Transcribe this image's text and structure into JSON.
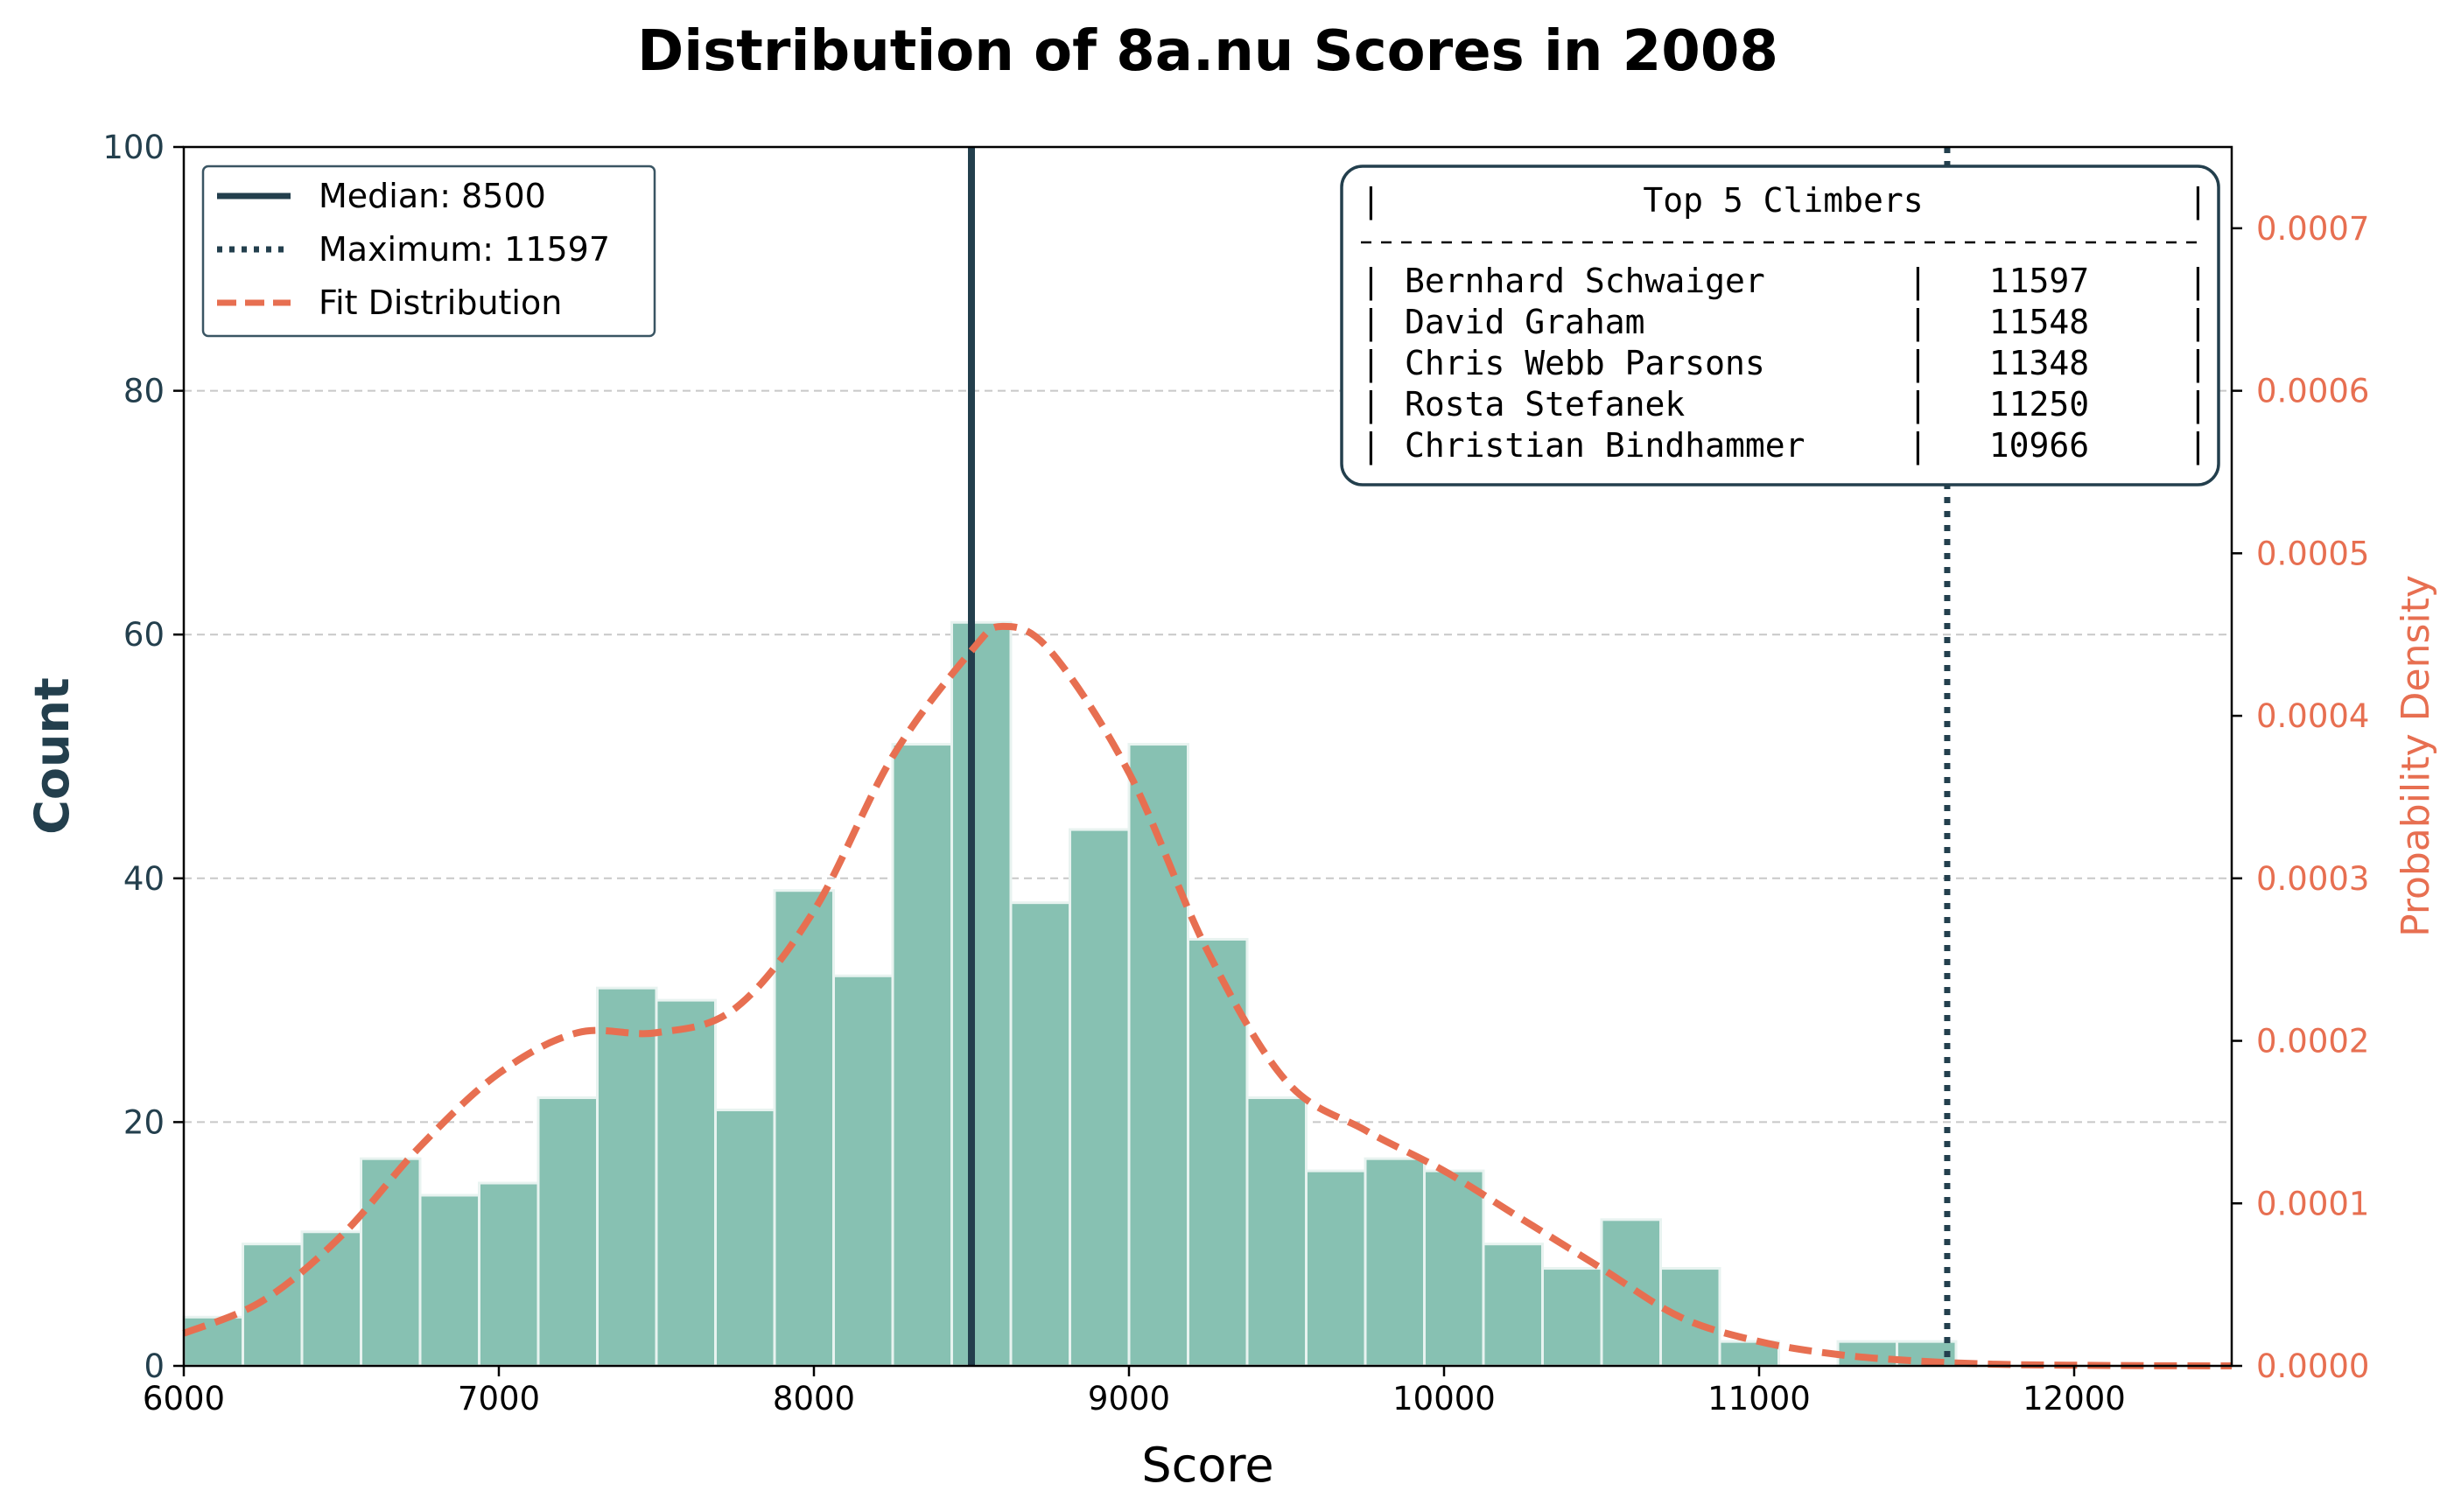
{
  "chart_data": {
    "type": "bar",
    "title": "Distribution of 8a.nu Scores in 2008",
    "xlabel": "Score",
    "ylabel": "Count",
    "y2label": "Probability Density",
    "xlim": [
      6000,
      12500
    ],
    "ylim": [
      0,
      100
    ],
    "y2lim": [
      0,
      0.00075
    ],
    "x_ticks": [
      "6000",
      "7000",
      "8000",
      "9000",
      "10000",
      "11000",
      "12000"
    ],
    "y_ticks": [
      "0",
      "20",
      "40",
      "60",
      "80",
      "100"
    ],
    "y2_ticks": [
      "0.0000",
      "0.0001",
      "0.0002",
      "0.0003",
      "0.0004",
      "0.0005",
      "0.0006",
      "0.0007"
    ],
    "grid": "horizontal dashed",
    "legend_placement": "upper-left",
    "colors": {
      "bars": "#87c1b2",
      "bar_edge": "#e8f3f0",
      "lines": "#233f4d",
      "fit": "#e76f51",
      "grid": "#c8c8c8"
    },
    "bins": {
      "start": 6000,
      "width": 187.5,
      "counts": [
        4,
        10,
        11,
        17,
        14,
        15,
        22,
        31,
        30,
        21,
        39,
        32,
        51,
        61,
        38,
        44,
        51,
        35,
        22,
        16,
        17,
        16,
        10,
        8,
        12,
        8,
        2,
        0,
        2,
        2
      ]
    },
    "median": 8500,
    "maximum": 11597,
    "fit_distribution": {
      "x": [
        6000,
        6250,
        6500,
        6750,
        7000,
        7250,
        7500,
        7750,
        8000,
        8250,
        8500,
        8600,
        8750,
        9000,
        9250,
        9500,
        9750,
        10000,
        10250,
        10500,
        10750,
        11000,
        11250,
        11500,
        11750,
        12000,
        12250,
        12500
      ],
      "y": [
        2e-05,
        4e-05,
        8e-05,
        0.000135,
        0.00018,
        0.000205,
        0.000205,
        0.00022,
        0.00028,
        0.000375,
        0.00044,
        0.000455,
        0.00044,
        0.000365,
        0.000255,
        0.000175,
        0.000145,
        0.00012,
        9e-05,
        6e-05,
        3e-05,
        1.5e-05,
        7e-06,
        3e-06,
        1e-06,
        4e-07,
        1e-07,
        0.0
      ]
    },
    "legend": [
      {
        "label": "Median: 8500",
        "style": "solid"
      },
      {
        "label": "Maximum: 11597",
        "style": "dotted"
      },
      {
        "label": "Fit Distribution",
        "style": "dashed"
      }
    ],
    "annotation_table": {
      "title": "Top 5 Climbers",
      "rows": [
        {
          "name": "Bernhard Schwaiger",
          "score": "11597"
        },
        {
          "name": "David Graham",
          "score": "11548"
        },
        {
          "name": "Chris Webb Parsons",
          "score": "11348"
        },
        {
          "name": "Rosta Stefanek",
          "score": "11250"
        },
        {
          "name": "Christian Bindhammer",
          "score": "10966"
        }
      ]
    }
  }
}
